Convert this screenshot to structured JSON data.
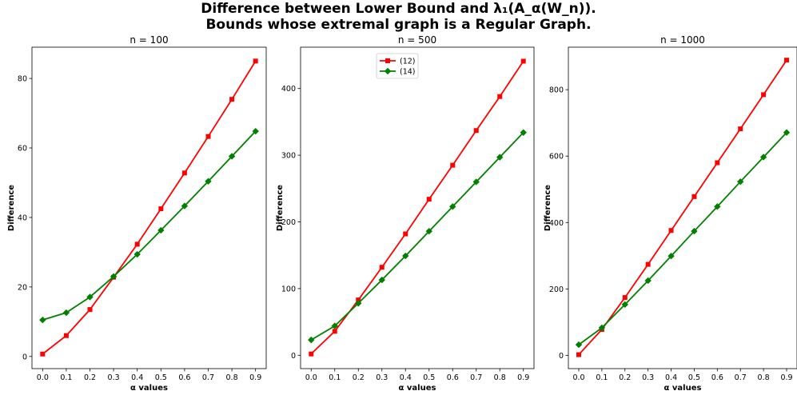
{
  "title": {
    "line1": "Difference between Lower Bound and λ₁(A_α(W_n)).",
    "line2": "Bounds whose extremal graph is a Regular Graph."
  },
  "colors": {
    "series1": "#ff0000",
    "series2": "#008000",
    "axes": "#000000",
    "background": "#ffffff"
  },
  "chart_data": [
    {
      "type": "line",
      "title": "n = 100",
      "xlabel": "α values",
      "ylabel": "Difference",
      "xticks": [
        "0.0",
        "0.1",
        "0.2",
        "0.3",
        "0.4",
        "0.5",
        "0.6",
        "0.7",
        "0.8",
        "0.9"
      ],
      "yticks": [
        0,
        20,
        40,
        60,
        80
      ],
      "xlim": [
        -0.045,
        0.945
      ],
      "ylim": [
        -3.5,
        89
      ],
      "grid": false,
      "legend": false,
      "x": [
        0.0,
        0.1,
        0.2,
        0.3,
        0.4,
        0.5,
        0.6,
        0.7,
        0.8,
        0.9
      ],
      "series": [
        {
          "name": "(12)",
          "color": "#ff0000",
          "marker": "square",
          "values": [
            0.7,
            6.0,
            13.5,
            22.8,
            32.3,
            42.5,
            52.8,
            63.3,
            74.0,
            85.0
          ]
        },
        {
          "name": "(14)",
          "color": "#008000",
          "marker": "diamond",
          "values": [
            10.5,
            12.6,
            17.1,
            23.0,
            29.4,
            36.3,
            43.3,
            50.4,
            57.6,
            64.8
          ]
        }
      ]
    },
    {
      "type": "line",
      "title": "n = 500",
      "xlabel": "α values",
      "ylabel": "Difference",
      "xticks": [
        "0.0",
        "0.1",
        "0.2",
        "0.3",
        "0.4",
        "0.5",
        "0.6",
        "0.7",
        "0.8",
        "0.9"
      ],
      "yticks": [
        0,
        100,
        200,
        300,
        400
      ],
      "xlim": [
        -0.045,
        0.945
      ],
      "ylim": [
        -20,
        462
      ],
      "grid": false,
      "legend": true,
      "legend_position": "upper center",
      "x": [
        0.0,
        0.1,
        0.2,
        0.3,
        0.4,
        0.5,
        0.6,
        0.7,
        0.8,
        0.9
      ],
      "series": [
        {
          "name": "(12)",
          "color": "#ff0000",
          "marker": "square",
          "values": [
            2,
            36,
            83,
            132,
            182,
            234,
            285,
            337,
            388,
            441
          ]
        },
        {
          "name": "(14)",
          "color": "#008000",
          "marker": "diamond",
          "values": [
            23,
            44,
            78,
            113,
            149,
            186,
            223,
            260,
            297,
            334
          ]
        }
      ]
    },
    {
      "type": "line",
      "title": "n = 1000",
      "xlabel": "α values",
      "ylabel": "Difference",
      "xticks": [
        "0.0",
        "0.1",
        "0.2",
        "0.3",
        "0.4",
        "0.5",
        "0.6",
        "0.7",
        "0.8",
        "0.9"
      ],
      "yticks": [
        0,
        200,
        400,
        600,
        800
      ],
      "xlim": [
        -0.045,
        0.945
      ],
      "ylim": [
        -40,
        928
      ],
      "grid": false,
      "legend": false,
      "x": [
        0.0,
        0.1,
        0.2,
        0.3,
        0.4,
        0.5,
        0.6,
        0.7,
        0.8,
        0.9
      ],
      "series": [
        {
          "name": "(12)",
          "color": "#ff0000",
          "marker": "square",
          "values": [
            2,
            78,
            174,
            274,
            376,
            478,
            580,
            682,
            785,
            889
          ]
        },
        {
          "name": "(14)",
          "color": "#008000",
          "marker": "diamond",
          "values": [
            32,
            83,
            153,
            225,
            299,
            374,
            448,
            523,
            597,
            671
          ]
        }
      ]
    }
  ]
}
